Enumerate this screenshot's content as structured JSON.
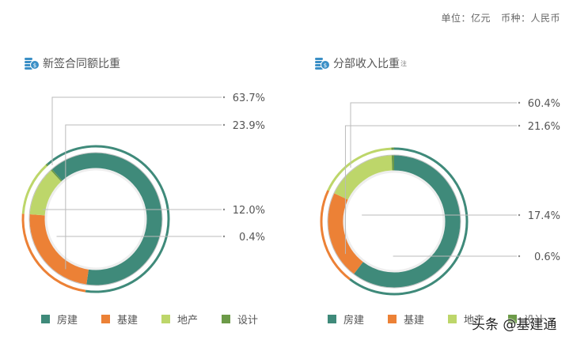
{
  "header": {
    "unit_text": "单位：亿元   币种：人民币"
  },
  "colors": {
    "fangjian": "#3f8a7a",
    "jijian": "#ec8136",
    "dichan": "#bdd66a",
    "sheji": "#6c9a48"
  },
  "charts": [
    {
      "title": "新签合同额比重",
      "note": ""
    },
    {
      "title": "分部收入比重",
      "note": "注"
    }
  ],
  "legend": [
    "房建",
    "基建",
    "地产",
    "设计"
  ],
  "watermark": "头条 @基建通",
  "chart_data": [
    {
      "type": "pie",
      "title": "新签合同额比重",
      "categories": [
        "房建",
        "基建",
        "地产",
        "设计"
      ],
      "values": [
        63.7,
        23.9,
        12.0,
        0.4
      ],
      "labels": [
        "63.7%",
        "23.9%",
        "12.0%",
        "0.4%"
      ],
      "legend_position": "bottom",
      "unit": "亿元"
    },
    {
      "type": "pie",
      "title": "分部收入比重",
      "categories": [
        "房建",
        "基建",
        "地产",
        "设计"
      ],
      "values": [
        60.4,
        21.6,
        17.4,
        0.6
      ],
      "labels": [
        "60.4%",
        "21.6%",
        "17.4%",
        "0.6%"
      ],
      "legend_position": "bottom",
      "unit": "亿元"
    }
  ]
}
